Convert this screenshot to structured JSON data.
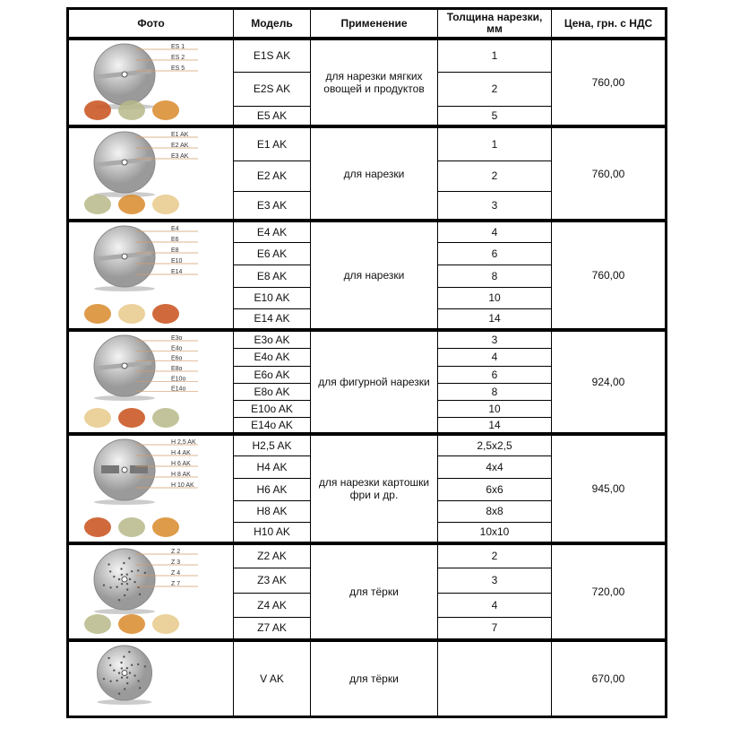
{
  "header": {
    "photo": "Фото",
    "model": "Модель",
    "application": "Применение",
    "thickness": "Толщина нарезки, мм",
    "price": "Цена, грн. с НДС"
  },
  "groups": [
    {
      "application": "для нарезки мягких овощей и продуктов",
      "price": "760,00",
      "photo_icon": "slicing-disc-image",
      "disc_labels": [
        "ES 1",
        "ES 2",
        "ES 5"
      ],
      "rows": [
        {
          "model": "E1S AK",
          "thickness": "1"
        },
        {
          "model": "E2S AK",
          "thickness": "2"
        },
        {
          "model": "E5 AK",
          "thickness": "5"
        }
      ]
    },
    {
      "application": "для нарезки",
      "price": "760,00",
      "photo_icon": "slicing-disc-image",
      "disc_labels": [
        "E1 AK",
        "E2 AK",
        "E3 AK"
      ],
      "rows": [
        {
          "model": "E1 AK",
          "thickness": "1"
        },
        {
          "model": "E2 AK",
          "thickness": "2"
        },
        {
          "model": "E3 AK",
          "thickness": "3"
        }
      ]
    },
    {
      "application": "для нарезки",
      "price": "760,00",
      "photo_icon": "slicing-disc-image",
      "disc_labels": [
        "E4",
        "E6",
        "E8",
        "E10",
        "E14"
      ],
      "rows": [
        {
          "model": "E4 AK",
          "thickness": "4"
        },
        {
          "model": "E6 AK",
          "thickness": "6"
        },
        {
          "model": "E8 AK",
          "thickness": "8"
        },
        {
          "model": "E10 AK",
          "thickness": "10"
        },
        {
          "model": "E14 AK",
          "thickness": "14"
        }
      ]
    },
    {
      "application": "для фигурной нарезки",
      "price": "924,00",
      "photo_icon": "wavy-slicing-disc-image",
      "disc_labels": [
        "E3o",
        "E4o",
        "E6o",
        "E8o",
        "E10o",
        "E14o"
      ],
      "rows": [
        {
          "model": "E3o AK",
          "thickness": "3"
        },
        {
          "model": "E4o AK",
          "thickness": "4"
        },
        {
          "model": "E6o AK",
          "thickness": "6"
        },
        {
          "model": "E8o AK",
          "thickness": "8"
        },
        {
          "model": "E10o AK",
          "thickness": "10"
        },
        {
          "model": "E14o AK",
          "thickness": "14"
        }
      ]
    },
    {
      "application": "для нарезки картошки фри и др.",
      "price": "945,00",
      "photo_icon": "fries-disc-image",
      "disc_labels": [
        "H 2,5 AK",
        "H 4 AK",
        "H 6 AK",
        "H 8 AK",
        "H 10 AK"
      ],
      "rows": [
        {
          "model": "H2,5 AK",
          "thickness": "2,5x2,5"
        },
        {
          "model": "H4 AK",
          "thickness": "4x4"
        },
        {
          "model": "H6 AK",
          "thickness": "6x6"
        },
        {
          "model": "H8 AK",
          "thickness": "8x8"
        },
        {
          "model": "H10 AK",
          "thickness": "10x10"
        }
      ]
    },
    {
      "application": "для тёрки",
      "price": "720,00",
      "photo_icon": "grater-disc-image",
      "disc_labels": [
        "Z 2",
        "Z 3",
        "Z 4",
        "Z 7"
      ],
      "rows": [
        {
          "model": "Z2 AK",
          "thickness": "2"
        },
        {
          "model": "Z3 AK",
          "thickness": "3"
        },
        {
          "model": "Z4 AK",
          "thickness": "4"
        },
        {
          "model": "Z7 AK",
          "thickness": "7"
        }
      ]
    },
    {
      "application": "для тёрки",
      "price": "670,00",
      "photo_icon": "grater-disc-image",
      "disc_labels": [],
      "rows": [
        {
          "model": "V AK",
          "thickness": ""
        }
      ]
    }
  ]
}
